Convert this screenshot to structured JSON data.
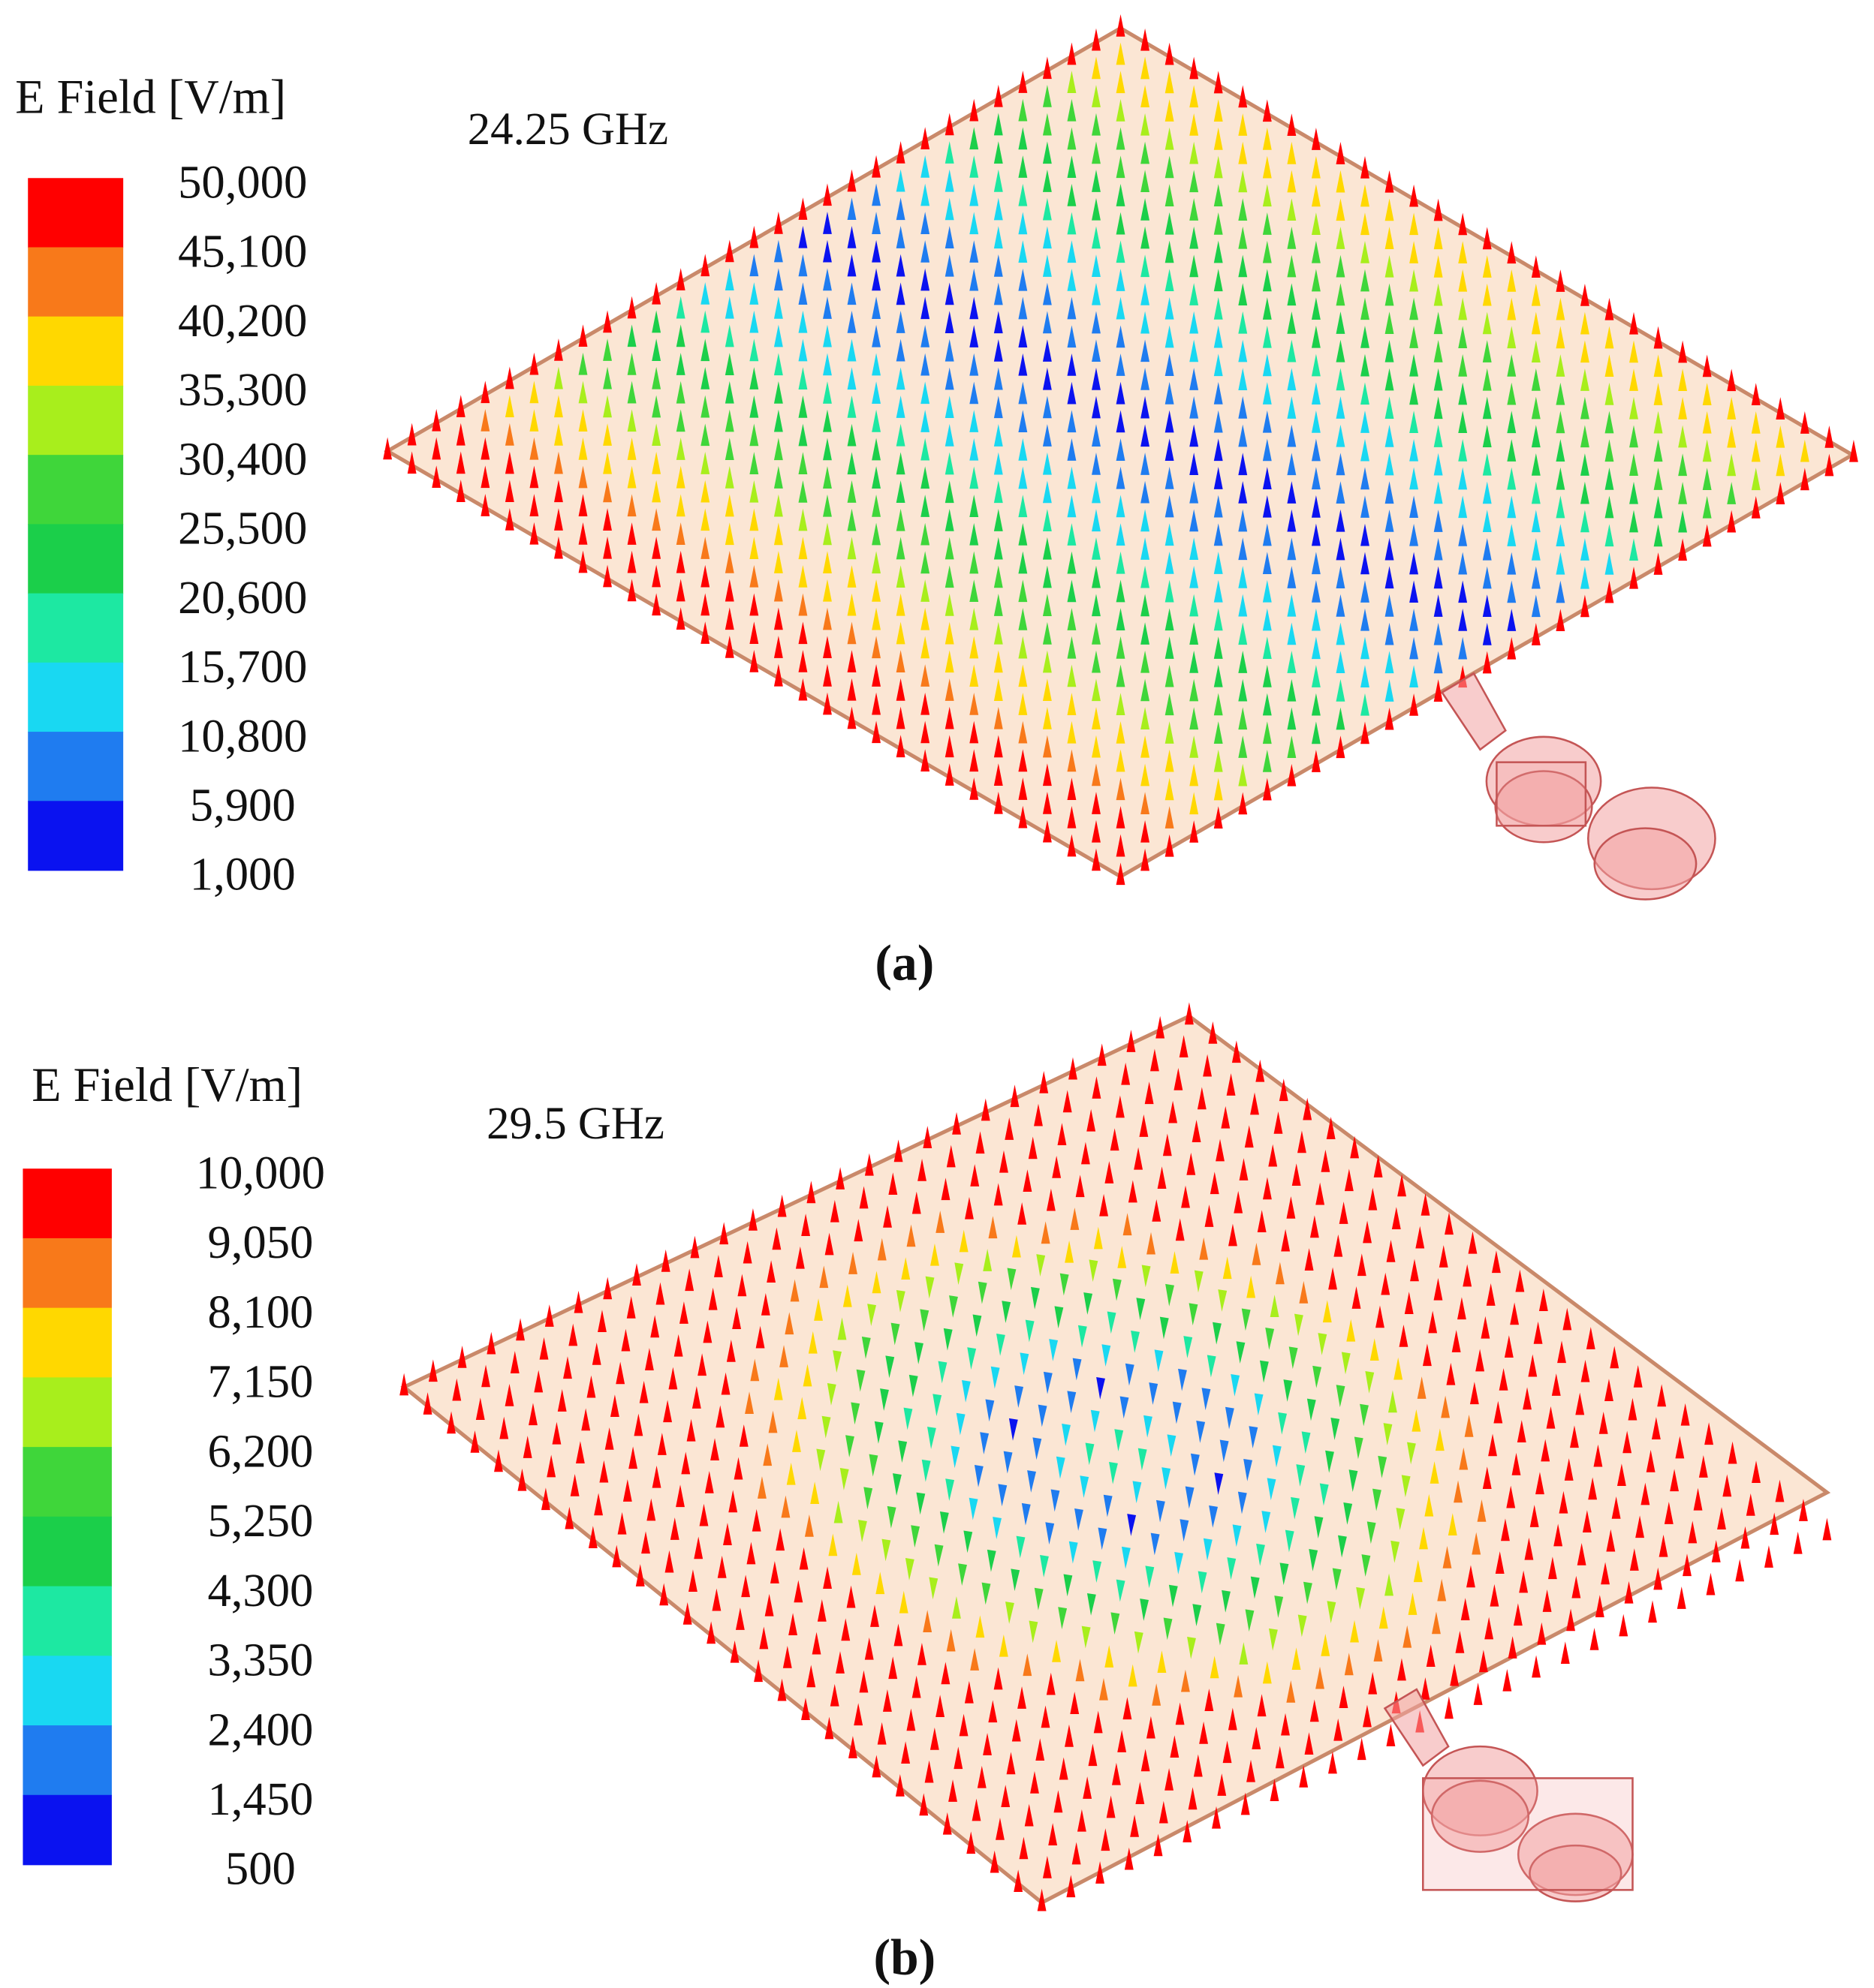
{
  "color_scale": [
    "#ff0000",
    "#f8791a",
    "#ffd800",
    "#a8ee1c",
    "#3fd63a",
    "#1bcf4a",
    "#1de8a2",
    "#19d8f2",
    "#1f7cf0",
    "#0a12f0"
  ],
  "panels": [
    {
      "legend_title": "E Field [V/m]",
      "legend_labels": [
        "50,000",
        "45,100",
        "40,200",
        "35,300",
        "30,400",
        "25,500",
        "20,600",
        "15,700",
        "10,800",
        "5,900",
        "1,000"
      ],
      "frequency": "24.25 GHz",
      "caption": "(a)"
    },
    {
      "legend_title": "E Field [V/m]",
      "legend_labels": [
        "10,000",
        "9,050",
        "8,100",
        "7,150",
        "6,200",
        "5,250",
        "4,300",
        "3,350",
        "2,400",
        "1,450",
        "500"
      ],
      "frequency": "29.5 GHz",
      "caption": "(b)"
    }
  ]
}
